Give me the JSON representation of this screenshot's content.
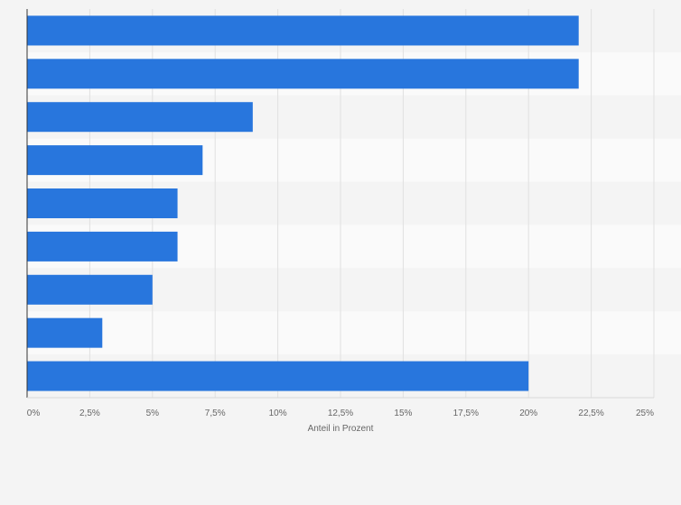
{
  "chart_data": {
    "type": "bar",
    "orientation": "horizontal",
    "title": "",
    "xlabel": "Anteil in Prozent",
    "ylabel": "",
    "categories": [
      "",
      "",
      "",
      "",
      "",
      "",
      "",
      "",
      ""
    ],
    "values": [
      22,
      22,
      9,
      7,
      6,
      6,
      5,
      3,
      20
    ],
    "xlim": [
      0,
      25
    ],
    "ticks": [
      0,
      2.5,
      5,
      7.5,
      10,
      12.5,
      15,
      17.5,
      20,
      22.5,
      25
    ],
    "tick_labels": [
      "0%",
      "2,5%",
      "5%",
      "7,5%",
      "10%",
      "12,5%",
      "15%",
      "17,5%",
      "20%",
      "22,5%",
      "25%"
    ],
    "grid": true,
    "bar_color": "#2876dd",
    "band_colors": [
      "#f4f4f4",
      "#fafafa"
    ],
    "grid_color": "#e0e0e0"
  }
}
